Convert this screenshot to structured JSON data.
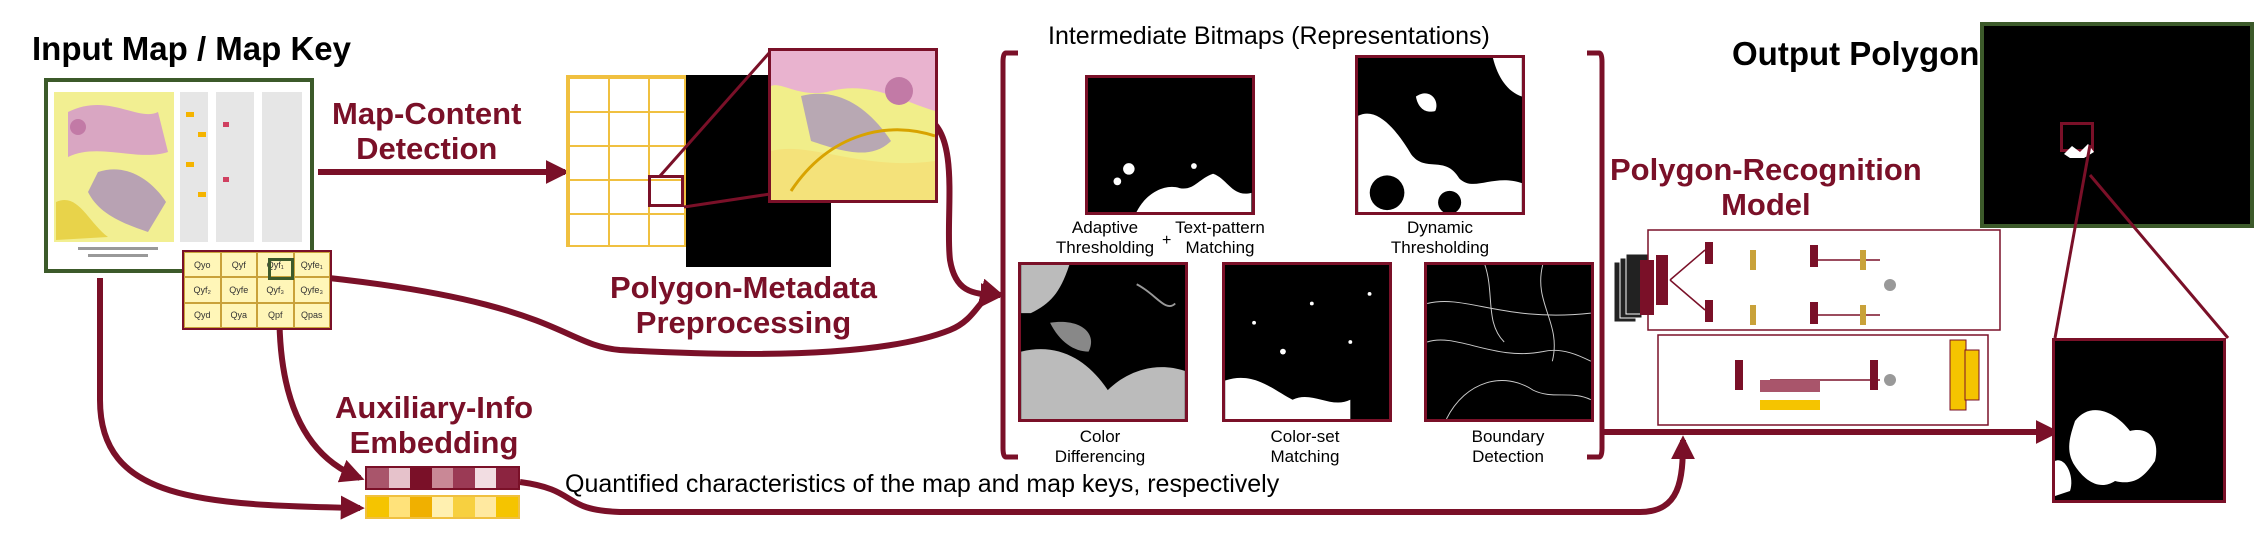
{
  "titles": {
    "input": "Input Map / Map Key",
    "output": "Output Polygon",
    "bitmaps_header": "Intermediate Bitmaps (Representations)"
  },
  "stages": {
    "map_content": [
      "Map-Content",
      "Detection"
    ],
    "polygon_metadata": [
      "Polygon-Metadata",
      "Preprocessing"
    ],
    "auxiliary": [
      "Auxiliary-Info",
      "Embedding"
    ],
    "recognition": [
      "Polygon-Recognition",
      "Model"
    ]
  },
  "bitmaps": [
    {
      "label": [
        "Adaptive",
        "Thresholding"
      ]
    },
    {
      "label": [
        "Text-pattern",
        "Matching"
      ]
    },
    {
      "label": [
        "Dynamic",
        "Thresholding"
      ]
    },
    {
      "label": [
        "Color",
        "Differencing"
      ]
    },
    {
      "label": [
        "Color-set",
        "Matching"
      ]
    },
    {
      "label": [
        "Boundary",
        "Detection"
      ]
    }
  ],
  "plus_sign": "+",
  "caption": "Quantified characteristics of the map and map keys, respectively",
  "map_keys": [
    "Qyo",
    "Qyf",
    "Qyf₁",
    "Qyfe₁",
    "Qyf₂",
    "Qyfe",
    "Qyf₃",
    "Qyfe₃",
    "Qyd",
    "Qya",
    "Qpf",
    "Qpas"
  ],
  "colors": {
    "accent": "#7a1028",
    "map_border": "#3c5a2a",
    "yellow": "#f5c400",
    "grid": "#f0c040"
  }
}
